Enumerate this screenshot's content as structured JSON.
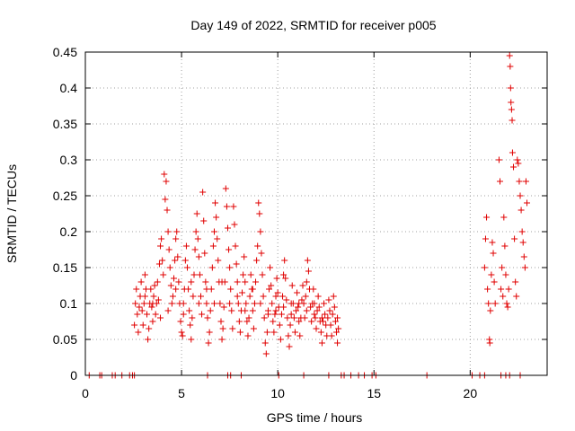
{
  "chart_data": {
    "type": "scatter",
    "title": "Day 149 of 2022, SRMTID for receiver p005",
    "xlabel": "GPS time / hours",
    "ylabel": "SRMTID / TECUs",
    "xlim": [
      0,
      24
    ],
    "ylim": [
      0,
      0.45
    ],
    "xticks": [
      0,
      5,
      10,
      15,
      20
    ],
    "xtick_labels": [
      "0",
      "5",
      "10",
      "15",
      "20"
    ],
    "yticks": [
      0,
      0.05,
      0.1,
      0.15,
      0.2,
      0.25,
      0.3,
      0.35,
      0.4,
      0.45
    ],
    "ytick_labels": [
      "0",
      "0.05",
      "0.1",
      "0.15",
      "0.2",
      "0.25",
      "0.3",
      "0.35",
      "0.4",
      "0.45"
    ],
    "grid": true,
    "marker": "+",
    "series": [
      {
        "name": "p005",
        "color": "#e00000",
        "points": [
          [
            0.2,
            0
          ],
          [
            0.75,
            0
          ],
          [
            0.85,
            0
          ],
          [
            1.4,
            0
          ],
          [
            1.55,
            0
          ],
          [
            1.9,
            0
          ],
          [
            2.3,
            0
          ],
          [
            2.45,
            0
          ],
          [
            2.55,
            0
          ],
          [
            6.35,
            0
          ],
          [
            7.4,
            0
          ],
          [
            7.55,
            0
          ],
          [
            8.1,
            0
          ],
          [
            10.05,
            0
          ],
          [
            11.35,
            0
          ],
          [
            12.65,
            0
          ],
          [
            13.3,
            0
          ],
          [
            13.45,
            0
          ],
          [
            13.8,
            0
          ],
          [
            14.2,
            0
          ],
          [
            14.5,
            0
          ],
          [
            14.9,
            0
          ],
          [
            15.1,
            0
          ],
          [
            17.75,
            0
          ],
          [
            20.1,
            0
          ],
          [
            20.5,
            0
          ],
          [
            20.75,
            0
          ],
          [
            21.6,
            0
          ],
          [
            21.85,
            0
          ],
          [
            22.05,
            0
          ],
          [
            22.6,
            0
          ],
          [
            2.55,
            0.07
          ],
          [
            2.6,
            0.1
          ],
          [
            2.65,
            0.12
          ],
          [
            2.7,
            0.085
          ],
          [
            2.75,
            0.06
          ],
          [
            2.8,
            0.095
          ],
          [
            2.85,
            0.11
          ],
          [
            2.9,
            0.13
          ],
          [
            2.95,
            0.09
          ],
          [
            3.0,
            0.07
          ],
          [
            3.05,
            0.1
          ],
          [
            3.1,
            0.14
          ],
          [
            3.15,
            0.12
          ],
          [
            3.2,
            0.085
          ],
          [
            3.25,
            0.05
          ],
          [
            3.3,
            0.065
          ],
          [
            3.35,
            0.1
          ],
          [
            3.4,
            0.12
          ],
          [
            3.45,
            0.095
          ],
          [
            3.5,
            0.075
          ],
          [
            3.55,
            0.11
          ],
          [
            3.6,
            0.125
          ],
          [
            3.65,
            0.085
          ],
          [
            3.7,
            0.1
          ],
          [
            3.75,
            0.13
          ],
          [
            3.8,
            0.105
          ],
          [
            3.85,
            0.155
          ],
          [
            3.9,
            0.18
          ],
          [
            3.95,
            0.19
          ],
          [
            4.0,
            0.16
          ],
          [
            4.05,
            0.14
          ],
          [
            4.1,
            0.28
          ],
          [
            4.15,
            0.245
          ],
          [
            4.2,
            0.27
          ],
          [
            4.25,
            0.23
          ],
          [
            4.3,
            0.2
          ],
          [
            4.35,
            0.175
          ],
          [
            4.4,
            0.15
          ],
          [
            4.45,
            0.125
          ],
          [
            4.5,
            0.1
          ],
          [
            4.55,
            0.11
          ],
          [
            4.6,
            0.135
          ],
          [
            4.65,
            0.16
          ],
          [
            4.7,
            0.19
          ],
          [
            4.75,
            0.2
          ],
          [
            4.8,
            0.165
          ],
          [
            4.85,
            0.13
          ],
          [
            4.9,
            0.1
          ],
          [
            4.95,
            0.075
          ],
          [
            5.0,
            0.06
          ],
          [
            5.05,
            0.055
          ],
          [
            5.1,
            0.085
          ],
          [
            5.15,
            0.12
          ],
          [
            5.2,
            0.16
          ],
          [
            5.25,
            0.18
          ],
          [
            5.3,
            0.15
          ],
          [
            5.35,
            0.12
          ],
          [
            5.4,
            0.09
          ],
          [
            5.45,
            0.07
          ],
          [
            5.5,
            0.05
          ],
          [
            5.55,
            0.08
          ],
          [
            5.6,
            0.11
          ],
          [
            5.65,
            0.14
          ],
          [
            5.7,
            0.175
          ],
          [
            5.75,
            0.2
          ],
          [
            5.8,
            0.225
          ],
          [
            5.85,
            0.19
          ],
          [
            5.9,
            0.165
          ],
          [
            5.95,
            0.14
          ],
          [
            6.0,
            0.11
          ],
          [
            6.05,
            0.085
          ],
          [
            6.1,
            0.255
          ],
          [
            6.15,
            0.215
          ],
          [
            6.2,
            0.17
          ],
          [
            6.25,
            0.13
          ],
          [
            6.3,
            0.1
          ],
          [
            6.35,
            0.08
          ],
          [
            6.4,
            0.045
          ],
          [
            6.45,
            0.06
          ],
          [
            6.5,
            0.09
          ],
          [
            6.55,
            0.12
          ],
          [
            6.6,
            0.15
          ],
          [
            6.65,
            0.18
          ],
          [
            6.7,
            0.2
          ],
          [
            6.75,
            0.24
          ],
          [
            6.8,
            0.22
          ],
          [
            6.85,
            0.19
          ],
          [
            6.9,
            0.16
          ],
          [
            6.95,
            0.13
          ],
          [
            7.0,
            0.1
          ],
          [
            7.05,
            0.075
          ],
          [
            7.1,
            0.05
          ],
          [
            7.15,
            0.065
          ],
          [
            7.2,
            0.095
          ],
          [
            7.25,
            0.13
          ],
          [
            7.3,
            0.26
          ],
          [
            7.35,
            0.235
          ],
          [
            7.4,
            0.205
          ],
          [
            7.45,
            0.175
          ],
          [
            7.5,
            0.15
          ],
          [
            7.55,
            0.12
          ],
          [
            7.6,
            0.09
          ],
          [
            7.65,
            0.065
          ],
          [
            7.7,
            0.235
          ],
          [
            7.75,
            0.21
          ],
          [
            7.8,
            0.18
          ],
          [
            7.85,
            0.155
          ],
          [
            7.9,
            0.13
          ],
          [
            7.95,
            0.1
          ],
          [
            8.0,
            0.075
          ],
          [
            8.05,
            0.06
          ],
          [
            8.1,
            0.09
          ],
          [
            8.15,
            0.115
          ],
          [
            8.2,
            0.14
          ],
          [
            8.25,
            0.165
          ],
          [
            8.3,
            0.13
          ],
          [
            8.35,
            0.1
          ],
          [
            8.4,
            0.075
          ],
          [
            8.45,
            0.055
          ],
          [
            8.5,
            0.08
          ],
          [
            8.55,
            0.11
          ],
          [
            8.6,
            0.14
          ],
          [
            8.65,
            0.12
          ],
          [
            8.7,
            0.09
          ],
          [
            8.75,
            0.065
          ],
          [
            8.8,
            0.1
          ],
          [
            8.85,
            0.13
          ],
          [
            8.9,
            0.16
          ],
          [
            8.95,
            0.18
          ],
          [
            9.0,
            0.24
          ],
          [
            9.05,
            0.225
          ],
          [
            9.1,
            0.2
          ],
          [
            9.15,
            0.17
          ],
          [
            9.2,
            0.14
          ],
          [
            9.25,
            0.11
          ],
          [
            9.3,
            0.08
          ],
          [
            9.35,
            0.045
          ],
          [
            9.4,
            0.03
          ],
          [
            9.45,
            0.06
          ],
          [
            9.5,
            0.09
          ],
          [
            9.55,
            0.12
          ],
          [
            9.6,
            0.15
          ],
          [
            9.65,
            0.125
          ],
          [
            9.7,
            0.1
          ],
          [
            9.75,
            0.075
          ],
          [
            9.8,
            0.06
          ],
          [
            9.85,
            0.085
          ],
          [
            9.9,
            0.11
          ],
          [
            9.95,
            0.135
          ],
          [
            10.0,
            0.115
          ],
          [
            10.05,
            0.095
          ],
          [
            10.1,
            0.07
          ],
          [
            10.15,
            0.05
          ],
          [
            10.2,
            0.085
          ],
          [
            10.25,
            0.11
          ],
          [
            10.3,
            0.14
          ],
          [
            10.35,
            0.16
          ],
          [
            10.4,
            0.135
          ],
          [
            10.45,
            0.105
          ],
          [
            10.5,
            0.08
          ],
          [
            10.55,
            0.055
          ],
          [
            10.6,
            0.04
          ],
          [
            10.65,
            0.07
          ],
          [
            10.7,
            0.1
          ],
          [
            10.75,
            0.125
          ],
          [
            10.8,
            0.1
          ],
          [
            10.85,
            0.08
          ],
          [
            10.9,
            0.06
          ],
          [
            10.95,
            0.09
          ],
          [
            11.0,
            0.115
          ],
          [
            11.05,
            0.095
          ],
          [
            11.1,
            0.075
          ],
          [
            11.15,
            0.055
          ],
          [
            11.2,
            0.08
          ],
          [
            11.25,
            0.105
          ],
          [
            11.3,
            0.125
          ],
          [
            11.35,
            0.1
          ],
          [
            11.4,
            0.08
          ],
          [
            11.45,
            0.11
          ],
          [
            11.5,
            0.13
          ],
          [
            11.55,
            0.16
          ],
          [
            11.6,
            0.145
          ],
          [
            11.65,
            0.12
          ],
          [
            11.7,
            0.095
          ],
          [
            11.75,
            0.075
          ],
          [
            11.8,
            0.1
          ],
          [
            11.85,
            0.12
          ],
          [
            11.9,
            0.1
          ],
          [
            11.95,
            0.08
          ],
          [
            12.0,
            0.065
          ],
          [
            12.05,
            0.09
          ],
          [
            12.1,
            0.11
          ],
          [
            12.15,
            0.095
          ],
          [
            12.2,
            0.075
          ],
          [
            12.25,
            0.06
          ],
          [
            12.3,
            0.045
          ],
          [
            12.35,
            0.075
          ],
          [
            12.4,
            0.1
          ],
          [
            12.45,
            0.085
          ],
          [
            12.5,
            0.07
          ],
          [
            12.55,
            0.055
          ],
          [
            12.6,
            0.08
          ],
          [
            12.65,
            0.105
          ],
          [
            12.7,
            0.09
          ],
          [
            12.75,
            0.07
          ],
          [
            12.8,
            0.055
          ],
          [
            12.85,
            0.085
          ],
          [
            12.9,
            0.11
          ],
          [
            12.95,
            0.095
          ],
          [
            13.0,
            0.075
          ],
          [
            13.05,
            0.06
          ],
          [
            13.1,
            0.045
          ],
          [
            13.15,
            0.065
          ],
          [
            3.1,
            0.11
          ],
          [
            3.5,
            0.1
          ],
          [
            3.9,
            0.08
          ],
          [
            4.3,
            0.09
          ],
          [
            4.7,
            0.12
          ],
          [
            5.1,
            0.1
          ],
          [
            5.5,
            0.13
          ],
          [
            5.9,
            0.1
          ],
          [
            6.3,
            0.12
          ],
          [
            6.7,
            0.1
          ],
          [
            7.1,
            0.13
          ],
          [
            7.5,
            0.1
          ],
          [
            7.9,
            0.11
          ],
          [
            8.3,
            0.09
          ],
          [
            8.7,
            0.12
          ],
          [
            9.1,
            0.1
          ],
          [
            9.5,
            0.085
          ],
          [
            9.9,
            0.09
          ],
          [
            10.3,
            0.095
          ],
          [
            10.7,
            0.085
          ],
          [
            11.1,
            0.1
          ],
          [
            11.5,
            0.09
          ],
          [
            11.9,
            0.085
          ],
          [
            12.3,
            0.08
          ],
          [
            12.7,
            0.09
          ],
          [
            13.1,
            0.08
          ],
          [
            20.75,
            0.15
          ],
          [
            20.8,
            0.19
          ],
          [
            20.85,
            0.22
          ],
          [
            20.9,
            0.12
          ],
          [
            20.95,
            0.1
          ],
          [
            21.0,
            0.05
          ],
          [
            21.02,
            0.045
          ],
          [
            21.05,
            0.09
          ],
          [
            21.1,
            0.14
          ],
          [
            21.15,
            0.185
          ],
          [
            21.2,
            0.17
          ],
          [
            21.25,
            0.13
          ],
          [
            21.3,
            0.1
          ],
          [
            21.5,
            0.3
          ],
          [
            21.55,
            0.27
          ],
          [
            21.6,
            0.12
          ],
          [
            21.65,
            0.15
          ],
          [
            21.7,
            0.11
          ],
          [
            21.75,
            0.22
          ],
          [
            21.8,
            0.18
          ],
          [
            21.85,
            0.14
          ],
          [
            21.9,
            0.1
          ],
          [
            21.95,
            0.095
          ],
          [
            22.0,
            0.12
          ],
          [
            22.05,
            0.445
          ],
          [
            22.08,
            0.43
          ],
          [
            22.1,
            0.4
          ],
          [
            22.12,
            0.38
          ],
          [
            22.15,
            0.37
          ],
          [
            22.18,
            0.355
          ],
          [
            22.2,
            0.31
          ],
          [
            22.25,
            0.29
          ],
          [
            22.3,
            0.19
          ],
          [
            22.35,
            0.13
          ],
          [
            22.4,
            0.11
          ],
          [
            22.45,
            0.3
          ],
          [
            22.5,
            0.295
          ],
          [
            22.55,
            0.27
          ],
          [
            22.6,
            0.25
          ],
          [
            22.65,
            0.23
          ],
          [
            22.7,
            0.2
          ],
          [
            22.75,
            0.185
          ],
          [
            22.8,
            0.165
          ],
          [
            22.85,
            0.15
          ],
          [
            22.9,
            0.27
          ],
          [
            22.95,
            0.24
          ]
        ]
      }
    ]
  }
}
